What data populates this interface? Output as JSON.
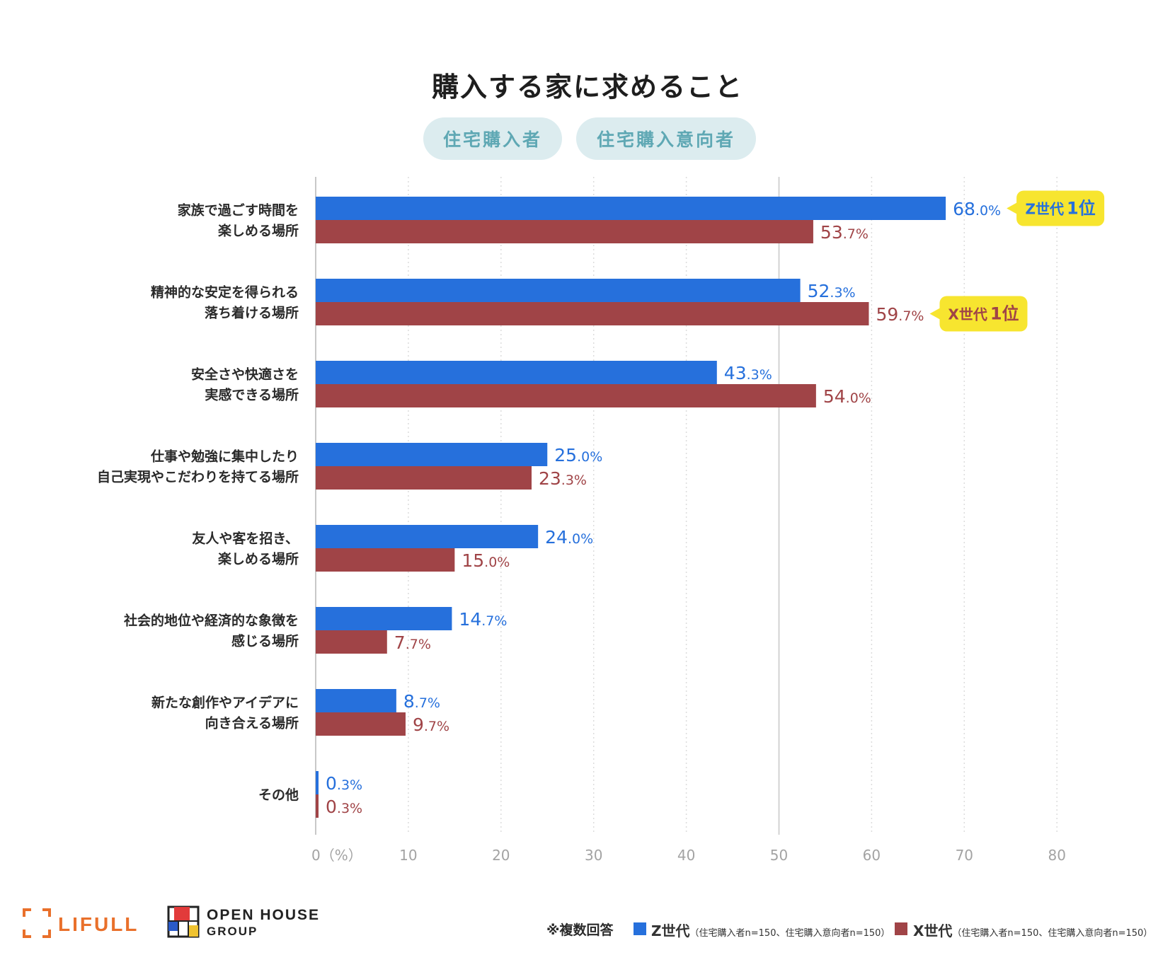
{
  "title": "購入する家に求めること",
  "pills": [
    "住宅購入者",
    "住宅購入意向者"
  ],
  "chart_data": {
    "type": "bar",
    "orientation": "horizontal",
    "categories": [
      [
        "家族で過ごす時間を",
        "楽しめる場所"
      ],
      [
        "精神的な安定を得られる",
        "落ち着ける場所"
      ],
      [
        "安全さや快適さを",
        "実感できる場所"
      ],
      [
        "仕事や勉強に集中したり",
        "自己実現やこだわりを持てる場所"
      ],
      [
        "友人や客を招き、",
        "楽しめる場所"
      ],
      [
        "社会的地位や経済的な象徴を",
        "感じる場所"
      ],
      [
        "新たな創作やアイデアに",
        "向き合える場所"
      ],
      [
        "その他"
      ]
    ],
    "series": [
      {
        "name": "Z世代",
        "color": "#2670dc",
        "values": [
          68.0,
          52.3,
          43.3,
          25.0,
          24.0,
          14.7,
          8.7,
          0.3
        ]
      },
      {
        "name": "X世代",
        "color": "#a04447",
        "values": [
          53.7,
          59.7,
          54.0,
          23.3,
          15.0,
          7.7,
          9.7,
          0.3
        ]
      }
    ],
    "value_format": [
      "68.0",
      "52.3",
      "43.3",
      "25.0",
      "24.0",
      "14.7",
      "8.7",
      "0.3"
    ],
    "value_format_x": [
      "53.7",
      "59.7",
      "54.0",
      "23.3",
      "15.0",
      "7.7",
      "9.7",
      "0.3"
    ],
    "unit": "%",
    "xlim": [
      0,
      80
    ],
    "xticks": [
      0,
      10,
      20,
      30,
      40,
      50,
      60,
      70,
      80
    ],
    "xtick_labels": [
      "0（%）",
      "10",
      "20",
      "30",
      "40",
      "50",
      "60",
      "70",
      "80"
    ],
    "grid": true,
    "annotations": [
      {
        "category_index": 0,
        "series": 0,
        "text_a": "Z世代",
        "text_b": "1位"
      },
      {
        "category_index": 1,
        "series": 1,
        "text_a": "X世代",
        "text_b": "1位"
      }
    ],
    "badge_color": "#f7e52f"
  },
  "footer": {
    "note": "※複数回答",
    "legend_z": "Z世代",
    "legend_z_note": "（住宅購入者n=150、住宅購入意向者n=150）",
    "legend_x": "X世代",
    "legend_x_note": "（住宅購入者n=150、住宅購入意向者n=150）"
  },
  "logos": {
    "lifull": "LIFULL",
    "openhouse_1": "OPEN HOUSE",
    "openhouse_2": "GROUP",
    "lifull_color": "#e9702b"
  }
}
